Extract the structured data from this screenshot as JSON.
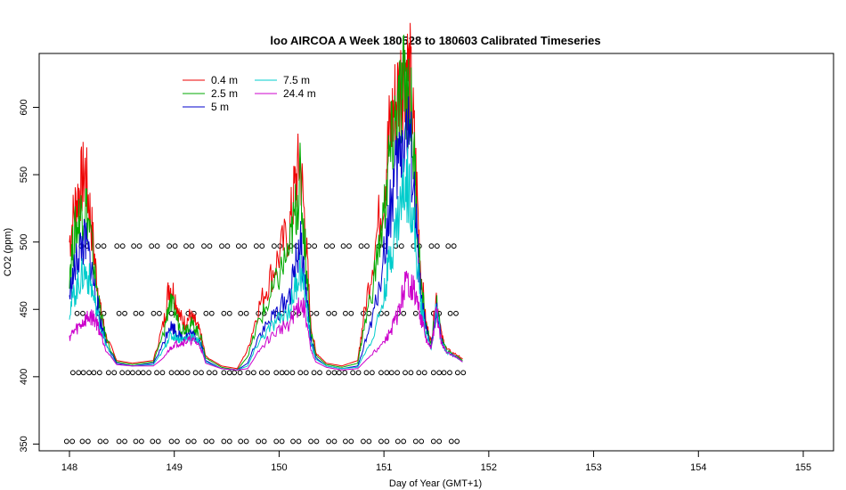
{
  "chart_data": {
    "type": "line",
    "title": "loo AIRCOA A  Week 180528 to 180603  Calibrated Timeseries",
    "xlabel": "Day of Year (GMT+1)",
    "ylabel": "CO2 (ppm)",
    "xlim": [
      148,
      155
    ],
    "ylim": [
      345,
      640
    ],
    "x_ticks": [
      "148",
      "149",
      "150",
      "151",
      "152",
      "153",
      "154",
      "155"
    ],
    "y_ticks": [
      "350",
      "400",
      "450",
      "500",
      "550",
      "600"
    ],
    "legend_position": "top-left",
    "series": [
      {
        "name": "0.4 m",
        "color": "#ee0000",
        "x": [
          148.0,
          148.05,
          148.1,
          148.15,
          148.2,
          148.25,
          148.3,
          148.35,
          148.45,
          148.6,
          148.8,
          148.9,
          148.95,
          149.0,
          149.05,
          149.1,
          149.15,
          149.2,
          149.25,
          149.3,
          149.45,
          149.6,
          149.7,
          149.8,
          149.9,
          150.0,
          150.1,
          150.15,
          150.2,
          150.25,
          150.3,
          150.35,
          150.45,
          150.6,
          150.75,
          150.8,
          150.9,
          151.0,
          151.05,
          151.1,
          151.15,
          151.2,
          151.25,
          151.3,
          151.35,
          151.4,
          151.45,
          151.5,
          151.55,
          151.6,
          151.7,
          151.75
        ],
        "y": [
          500,
          525,
          540,
          552,
          520,
          480,
          448,
          430,
          412,
          410,
          412,
          440,
          468,
          462,
          445,
          440,
          445,
          440,
          432,
          415,
          408,
          406,
          420,
          450,
          470,
          490,
          510,
          540,
          560,
          510,
          440,
          418,
          410,
          408,
          412,
          440,
          490,
          540,
          580,
          600,
          615,
          635,
          620,
          560,
          480,
          440,
          425,
          460,
          430,
          420,
          416,
          413
        ]
      },
      {
        "name": "2.5 m",
        "color": "#00aa00",
        "x": [
          148.0,
          148.05,
          148.1,
          148.15,
          148.2,
          148.25,
          148.3,
          148.35,
          148.45,
          148.6,
          148.8,
          148.9,
          148.95,
          149.0,
          149.05,
          149.1,
          149.15,
          149.2,
          149.25,
          149.3,
          149.45,
          149.6,
          149.7,
          149.8,
          149.9,
          150.0,
          150.1,
          150.15,
          150.2,
          150.25,
          150.3,
          150.35,
          150.45,
          150.6,
          150.75,
          150.8,
          150.9,
          151.0,
          151.05,
          151.1,
          151.15,
          151.2,
          151.25,
          151.3,
          151.35,
          151.4,
          151.45,
          151.5,
          151.55,
          151.6,
          151.7,
          151.75
        ],
        "y": [
          480,
          505,
          520,
          530,
          505,
          470,
          445,
          428,
          411,
          409,
          411,
          432,
          455,
          450,
          438,
          435,
          440,
          436,
          430,
          414,
          407,
          405,
          415,
          440,
          455,
          475,
          495,
          520,
          545,
          495,
          435,
          416,
          409,
          407,
          410,
          432,
          470,
          520,
          560,
          585,
          600,
          620,
          605,
          545,
          470,
          438,
          423,
          455,
          428,
          419,
          415,
          412
        ]
      },
      {
        "name": "5 m",
        "color": "#0000cc",
        "x": [
          148.0,
          148.05,
          148.1,
          148.15,
          148.2,
          148.25,
          148.3,
          148.35,
          148.45,
          148.6,
          148.8,
          148.9,
          148.95,
          149.0,
          149.05,
          149.1,
          149.15,
          149.2,
          149.25,
          149.3,
          149.45,
          149.6,
          149.7,
          149.8,
          149.9,
          150.0,
          150.1,
          150.15,
          150.2,
          150.25,
          150.3,
          150.35,
          150.45,
          150.6,
          150.75,
          150.8,
          150.9,
          151.0,
          151.05,
          151.1,
          151.15,
          151.2,
          151.25,
          151.3,
          151.35,
          151.4,
          151.45,
          151.5,
          151.55,
          151.6,
          151.7,
          151.75
        ],
        "y": [
          460,
          480,
          495,
          500,
          485,
          460,
          440,
          425,
          410,
          408,
          410,
          425,
          438,
          436,
          430,
          430,
          432,
          430,
          426,
          412,
          406,
          405,
          410,
          430,
          440,
          450,
          460,
          480,
          500,
          470,
          428,
          414,
          408,
          406,
          408,
          420,
          445,
          490,
          520,
          545,
          565,
          585,
          575,
          520,
          460,
          435,
          421,
          452,
          426,
          418,
          414,
          411
        ]
      },
      {
        "name": "7.5 m",
        "color": "#00cccc",
        "x": [
          148.0,
          148.05,
          148.1,
          148.15,
          148.2,
          148.25,
          148.3,
          148.35,
          148.45,
          148.6,
          148.8,
          148.9,
          148.95,
          149.0,
          149.05,
          149.1,
          149.15,
          149.2,
          149.25,
          149.3,
          149.45,
          149.6,
          149.7,
          149.8,
          149.9,
          150.0,
          150.1,
          150.15,
          150.2,
          150.25,
          150.3,
          150.35,
          150.45,
          150.6,
          150.75,
          150.8,
          150.9,
          151.0,
          151.05,
          151.1,
          151.15,
          151.2,
          151.25,
          151.3,
          151.35,
          151.4,
          151.45,
          151.5,
          151.55,
          151.6,
          151.7,
          151.75
        ],
        "y": [
          450,
          462,
          472,
          478,
          470,
          452,
          436,
          423,
          409,
          408,
          409,
          420,
          430,
          430,
          428,
          428,
          430,
          428,
          424,
          411,
          406,
          405,
          408,
          425,
          435,
          442,
          450,
          465,
          480,
          460,
          425,
          413,
          408,
          406,
          407,
          415,
          430,
          460,
          485,
          505,
          525,
          545,
          540,
          500,
          455,
          432,
          420,
          450,
          425,
          418,
          414,
          411
        ]
      },
      {
        "name": "24.4 m",
        "color": "#cc00cc",
        "x": [
          148.0,
          148.05,
          148.1,
          148.15,
          148.2,
          148.25,
          148.3,
          148.35,
          148.45,
          148.6,
          148.8,
          148.9,
          148.95,
          149.0,
          149.05,
          149.1,
          149.15,
          149.2,
          149.25,
          149.3,
          149.45,
          149.6,
          149.7,
          149.8,
          149.9,
          150.0,
          150.1,
          150.15,
          150.2,
          150.25,
          150.3,
          150.35,
          150.45,
          150.6,
          150.75,
          150.8,
          150.9,
          151.0,
          151.05,
          151.1,
          151.15,
          151.2,
          151.25,
          151.3,
          151.35,
          151.4,
          151.45,
          151.5,
          151.55,
          151.6,
          151.7,
          151.75
        ],
        "y": [
          430,
          434,
          438,
          442,
          445,
          442,
          432,
          420,
          409,
          408,
          408,
          414,
          420,
          424,
          425,
          426,
          427,
          426,
          422,
          410,
          406,
          405,
          406,
          418,
          428,
          435,
          440,
          448,
          455,
          448,
          420,
          411,
          407,
          405,
          406,
          410,
          418,
          425,
          432,
          440,
          450,
          468,
          470,
          460,
          445,
          428,
          420,
          450,
          424,
          418,
          414,
          411
        ]
      }
    ],
    "markers": {
      "symbol": "o",
      "color": "#000000",
      "rows": [
        {
          "y": 352,
          "x": [
            148.0,
            148.15,
            148.32,
            148.5,
            148.66,
            148.82,
            149.0,
            149.16,
            149.33,
            149.5,
            149.66,
            149.83,
            150.0,
            150.16,
            150.33,
            150.5,
            150.66,
            150.83,
            151.0,
            151.16,
            151.33,
            151.5,
            151.67
          ]
        },
        {
          "y": 403,
          "x": [
            148.06,
            148.16,
            148.26,
            148.4,
            148.53,
            148.63,
            148.73,
            148.86,
            149.0,
            149.1,
            149.23,
            149.36,
            149.5,
            149.6,
            149.73,
            149.86,
            150.0,
            150.1,
            150.23,
            150.36,
            150.5,
            150.6,
            150.73,
            150.86,
            151.0,
            151.1,
            151.23,
            151.36,
            151.5,
            151.6,
            151.73
          ]
        },
        {
          "y": 447,
          "x": [
            148.1,
            148.3,
            148.5,
            148.66,
            148.83,
            149.0,
            149.16,
            149.33,
            149.5,
            149.66,
            149.83,
            150.0,
            150.16,
            150.33,
            150.5,
            150.66,
            150.83,
            151.0,
            151.16,
            151.33,
            151.5,
            151.66
          ]
        },
        {
          "y": 497,
          "x": [
            148.14,
            148.3,
            148.48,
            148.64,
            148.81,
            148.98,
            149.14,
            149.31,
            149.48,
            149.64,
            149.81,
            149.98,
            150.14,
            150.31,
            150.48,
            150.64,
            150.81,
            150.98,
            151.14,
            151.31,
            151.48,
            151.64
          ]
        }
      ]
    }
  }
}
